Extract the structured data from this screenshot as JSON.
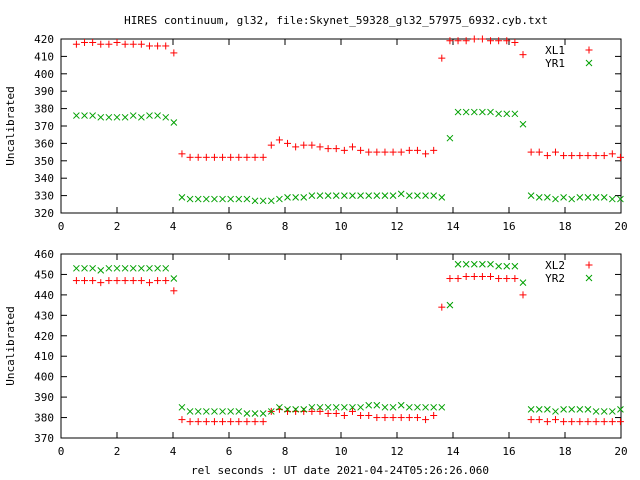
{
  "title": "HIRES continuum, gl32, file:Skynet_59328_gl32_57975_6932.cyb.txt",
  "xlabel": "rel seconds : UT date 2021-04-24T05:26:26.060",
  "chart_data": [
    {
      "type": "scatter",
      "ylabel": "Uncalibrated",
      "xlim": [
        0,
        20
      ],
      "ylim": [
        320,
        420
      ],
      "xticks": [
        0,
        2,
        4,
        6,
        8,
        10,
        12,
        14,
        16,
        18,
        20
      ],
      "yticks": [
        320,
        330,
        340,
        350,
        360,
        370,
        380,
        390,
        400,
        410,
        420
      ],
      "grid": false,
      "legend": "top-right",
      "series": [
        {
          "name": "XL1",
          "color": "#ff0000",
          "marker": "plus",
          "x": [
            0.55,
            0.84,
            1.13,
            1.42,
            1.71,
            2.0,
            2.29,
            2.58,
            2.87,
            3.16,
            3.45,
            3.74,
            4.03,
            4.32,
            4.61,
            4.9,
            5.19,
            5.48,
            5.77,
            6.06,
            6.35,
            6.64,
            6.93,
            7.22,
            7.51,
            7.8,
            8.09,
            8.38,
            8.67,
            8.96,
            9.25,
            9.54,
            9.83,
            10.12,
            10.41,
            10.7,
            10.99,
            11.28,
            11.57,
            11.86,
            12.15,
            12.44,
            12.73,
            13.02,
            13.31,
            13.6,
            13.89,
            14.18,
            14.47,
            14.76,
            15.05,
            15.34,
            15.63,
            15.92,
            16.21,
            16.5,
            16.79,
            17.08,
            17.37,
            17.66,
            17.95,
            18.24,
            18.53,
            18.82,
            19.11,
            19.4,
            19.69,
            19.98
          ],
          "y": [
            417,
            418,
            418,
            417,
            417,
            418,
            417,
            417,
            417,
            416,
            416,
            416,
            412,
            354,
            352,
            352,
            352,
            352,
            352,
            352,
            352,
            352,
            352,
            352,
            359,
            362,
            360,
            358,
            359,
            359,
            358,
            357,
            357,
            356,
            358,
            356,
            355,
            355,
            355,
            355,
            355,
            356,
            356,
            354,
            356,
            409,
            419,
            419,
            419,
            420,
            420,
            419,
            419,
            419,
            418,
            411,
            355,
            355,
            353,
            355,
            353,
            353,
            353,
            353,
            353,
            353,
            354,
            352
          ]
        },
        {
          "name": "YR1",
          "color": "#00a000",
          "marker": "x",
          "x": [
            0.55,
            0.84,
            1.13,
            1.42,
            1.71,
            2.0,
            2.29,
            2.58,
            2.87,
            3.16,
            3.45,
            3.74,
            4.03,
            4.32,
            4.61,
            4.9,
            5.19,
            5.48,
            5.77,
            6.06,
            6.35,
            6.64,
            6.93,
            7.22,
            7.51,
            7.8,
            8.09,
            8.38,
            8.67,
            8.96,
            9.25,
            9.54,
            9.83,
            10.12,
            10.41,
            10.7,
            10.99,
            11.28,
            11.57,
            11.86,
            12.15,
            12.44,
            12.73,
            13.02,
            13.31,
            13.6,
            13.89,
            14.18,
            14.47,
            14.76,
            15.05,
            15.34,
            15.63,
            15.92,
            16.21,
            16.5,
            16.79,
            17.08,
            17.37,
            17.66,
            17.95,
            18.24,
            18.53,
            18.82,
            19.11,
            19.4,
            19.69,
            19.98
          ],
          "y": [
            376,
            376,
            376,
            375,
            375,
            375,
            375,
            376,
            375,
            376,
            376,
            375,
            372,
            329,
            328,
            328,
            328,
            328,
            328,
            328,
            328,
            328,
            327,
            327,
            327,
            328,
            329,
            329,
            329,
            330,
            330,
            330,
            330,
            330,
            330,
            330,
            330,
            330,
            330,
            330,
            331,
            330,
            330,
            330,
            330,
            329,
            363,
            378,
            378,
            378,
            378,
            378,
            377,
            377,
            377,
            371,
            330,
            329,
            329,
            328,
            329,
            328,
            329,
            329,
            329,
            329,
            328,
            328
          ]
        }
      ]
    },
    {
      "type": "scatter",
      "ylabel": "Uncalibrated",
      "xlim": [
        0,
        20
      ],
      "ylim": [
        370,
        460
      ],
      "xticks": [
        0,
        2,
        4,
        6,
        8,
        10,
        12,
        14,
        16,
        18,
        20
      ],
      "yticks": [
        370,
        380,
        390,
        400,
        410,
        420,
        430,
        440,
        450,
        460
      ],
      "grid": false,
      "legend": "top-right",
      "series": [
        {
          "name": "XL2",
          "color": "#ff0000",
          "marker": "plus",
          "x": [
            0.55,
            0.84,
            1.13,
            1.42,
            1.71,
            2.0,
            2.29,
            2.58,
            2.87,
            3.16,
            3.45,
            3.74,
            4.03,
            4.32,
            4.61,
            4.9,
            5.19,
            5.48,
            5.77,
            6.06,
            6.35,
            6.64,
            6.93,
            7.22,
            7.51,
            7.8,
            8.09,
            8.38,
            8.67,
            8.96,
            9.25,
            9.54,
            9.83,
            10.12,
            10.41,
            10.7,
            10.99,
            11.28,
            11.57,
            11.86,
            12.15,
            12.44,
            12.73,
            13.02,
            13.31,
            13.6,
            13.89,
            14.18,
            14.47,
            14.76,
            15.05,
            15.34,
            15.63,
            15.92,
            16.21,
            16.5,
            16.79,
            17.08,
            17.37,
            17.66,
            17.95,
            18.24,
            18.53,
            18.82,
            19.11,
            19.4,
            19.69,
            19.98
          ],
          "y": [
            447,
            447,
            447,
            446,
            447,
            447,
            447,
            447,
            447,
            446,
            447,
            447,
            442,
            379,
            378,
            378,
            378,
            378,
            378,
            378,
            378,
            378,
            378,
            378,
            383,
            384,
            383,
            383,
            383,
            383,
            383,
            382,
            382,
            381,
            383,
            381,
            381,
            380,
            380,
            380,
            380,
            380,
            380,
            379,
            381,
            434,
            448,
            448,
            449,
            449,
            449,
            449,
            448,
            448,
            448,
            440,
            379,
            379,
            378,
            379,
            378,
            378,
            378,
            378,
            378,
            378,
            378,
            378
          ]
        },
        {
          "name": "YR2",
          "color": "#00a000",
          "marker": "x",
          "x": [
            0.55,
            0.84,
            1.13,
            1.42,
            1.71,
            2.0,
            2.29,
            2.58,
            2.87,
            3.16,
            3.45,
            3.74,
            4.03,
            4.32,
            4.61,
            4.9,
            5.19,
            5.48,
            5.77,
            6.06,
            6.35,
            6.64,
            6.93,
            7.22,
            7.51,
            7.8,
            8.09,
            8.38,
            8.67,
            8.96,
            9.25,
            9.54,
            9.83,
            10.12,
            10.41,
            10.7,
            10.99,
            11.28,
            11.57,
            11.86,
            12.15,
            12.44,
            12.73,
            13.02,
            13.31,
            13.6,
            13.89,
            14.18,
            14.47,
            14.76,
            15.05,
            15.34,
            15.63,
            15.92,
            16.21,
            16.5,
            16.79,
            17.08,
            17.37,
            17.66,
            17.95,
            18.24,
            18.53,
            18.82,
            19.11,
            19.4,
            19.69,
            19.98
          ],
          "y": [
            453,
            453,
            453,
            452,
            453,
            453,
            453,
            453,
            453,
            453,
            453,
            453,
            448,
            385,
            383,
            383,
            383,
            383,
            383,
            383,
            383,
            382,
            382,
            382,
            383,
            385,
            384,
            384,
            384,
            385,
            385,
            385,
            385,
            385,
            385,
            385,
            386,
            386,
            385,
            385,
            386,
            385,
            385,
            385,
            385,
            385,
            435,
            455,
            455,
            455,
            455,
            455,
            454,
            454,
            454,
            446,
            384,
            384,
            384,
            383,
            384,
            384,
            384,
            384,
            383,
            383,
            383,
            384
          ]
        }
      ]
    }
  ]
}
